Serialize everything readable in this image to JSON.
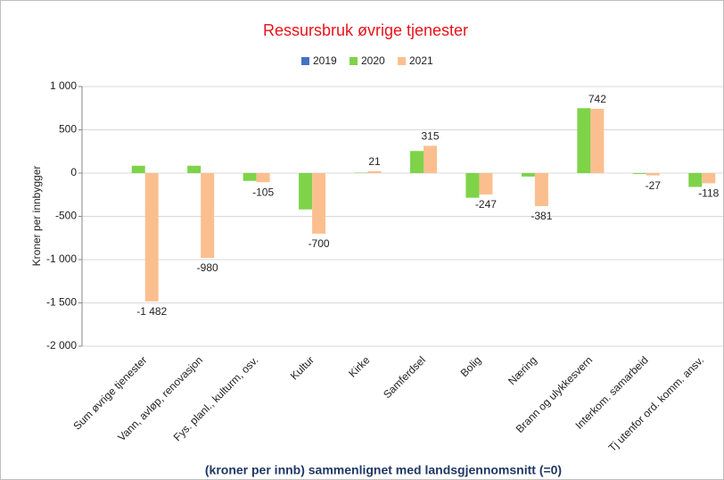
{
  "chart_data": {
    "type": "bar",
    "title": "Ressursbruk øvrige tjenester",
    "x_label": "(kroner per innb) sammenlignet med landsgjennomsnitt (=0)",
    "y_label": "Kroner per innbygger",
    "categories": [
      "Sum øvrige tjenester",
      "Vann, avløp, renovasjon",
      "Fys. planl., kulturm, osv.",
      "Kultur",
      "Kirke",
      "Samferdsel",
      "Bolig",
      "Næring",
      "Brann og ulykkesvern",
      "Interkom. samarbeid",
      "Tj utenfor ord. komm. ansv."
    ],
    "series": [
      {
        "name": "2019",
        "color": "#4472c4",
        "values": [
          null,
          null,
          null,
          null,
          null,
          null,
          null,
          null,
          null,
          null,
          null
        ]
      },
      {
        "name": "2020",
        "color": "#7ed348",
        "values": [
          85,
          85,
          -90,
          -420,
          5,
          255,
          -285,
          -40,
          750,
          -10,
          -160
        ]
      },
      {
        "name": "2021",
        "color": "#fbbf8f",
        "values": [
          -1482,
          -980,
          -105,
          -700,
          21,
          315,
          -247,
          -381,
          742,
          -27,
          -118
        ],
        "value_labels": [
          "-1 482",
          "-980",
          "-105",
          "-700",
          "21",
          "315",
          "-247",
          "-381",
          "742",
          "-27",
          "-118"
        ]
      }
    ],
    "ylim": [
      -2000,
      1000
    ],
    "yticks": [
      {
        "value": -2000,
        "label": "-2 000"
      },
      {
        "value": -1500,
        "label": "-1 500"
      },
      {
        "value": -1000,
        "label": "-1 000"
      },
      -500,
      0,
      500,
      {
        "value": 1000,
        "label": "1 000"
      }
    ],
    "grid": true
  }
}
